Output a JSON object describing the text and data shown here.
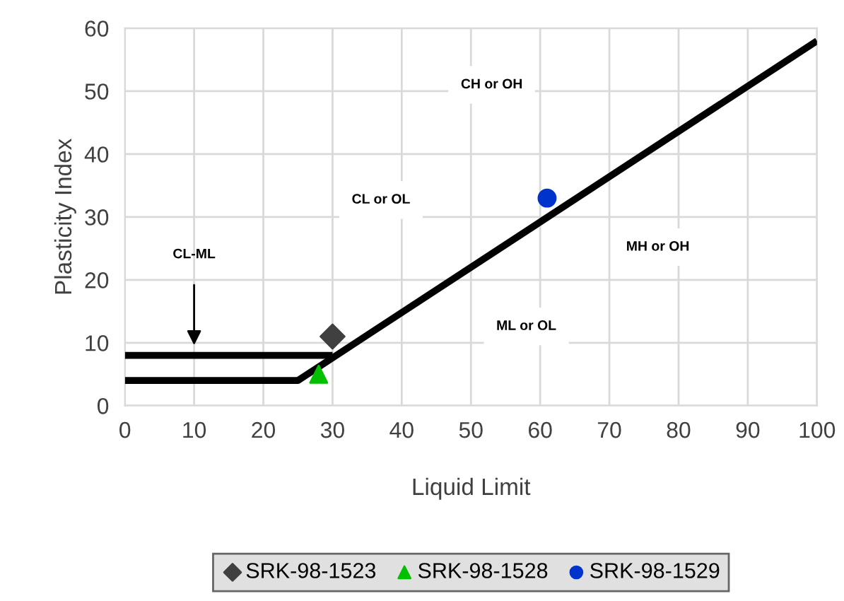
{
  "chart_data": {
    "type": "scatter",
    "xlabel": "Liquid Limit",
    "ylabel": "Plasticity Index",
    "xlim": [
      0,
      100
    ],
    "xticks": [
      0,
      10,
      20,
      30,
      40,
      50,
      60,
      70,
      80,
      90,
      100
    ],
    "ylim": [
      0,
      60
    ],
    "yticks": [
      0,
      10,
      20,
      30,
      40,
      50,
      60
    ],
    "grid": true,
    "legend": "bottom",
    "series": [
      {
        "type": "line",
        "color": "#000000",
        "x": [
          0,
          25,
          100
        ],
        "values": [
          4,
          4,
          58
        ],
        "marker": "none"
      },
      {
        "type": "line",
        "color": "#000000",
        "x": [
          0,
          30
        ],
        "values": [
          8,
          8
        ],
        "marker": "none"
      },
      {
        "name": "SRK-98-1523",
        "color": "#404040",
        "x": [
          30
        ],
        "values": [
          11
        ],
        "marker": "diamond"
      },
      {
        "name": "SRK-98-1528",
        "color": "#00c000",
        "x": [
          28
        ],
        "values": [
          5
        ],
        "marker": "triangle"
      },
      {
        "name": "SRK-98-1529",
        "color": "#0033cc",
        "x": [
          61
        ],
        "values": [
          33
        ],
        "marker": "circle"
      }
    ],
    "annotations": [
      "CH or OH",
      "CL or OL",
      "MH or OH",
      "ML or OL",
      "CL-ML"
    ]
  }
}
